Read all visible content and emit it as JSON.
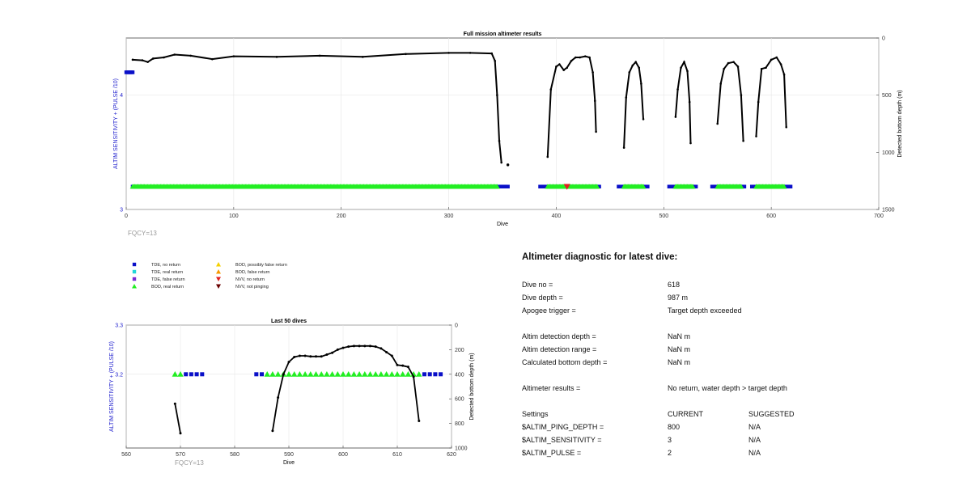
{
  "colors": {
    "tde_no_return": "#0a10c8",
    "tde_real_return": "#22d8d8",
    "tde_false_return": "#7a2bd6",
    "bod_real_return": "#22ee22",
    "bod_possibly_false": "#f5d000",
    "bod_false_return": "#f59a00",
    "nvv_no_return": "#e02020",
    "nvv_not_pinging": "#6a0000",
    "depth_line": "#000000",
    "left_axis": "#1a1acc"
  },
  "legend": {
    "items": [
      {
        "label": "TDE, no return",
        "marker": "square",
        "color": "#0a10c8"
      },
      {
        "label": "TDE, real return",
        "marker": "square",
        "color": "#22d8d8"
      },
      {
        "label": "TDE, false return",
        "marker": "square",
        "color": "#7a2bd6"
      },
      {
        "label": "BOD, real return",
        "marker": "triangle-up",
        "color": "#22ee22"
      },
      {
        "label": "BOD, possibly false return",
        "marker": "triangle-up",
        "color": "#f5d000"
      },
      {
        "label": "BOD, false return",
        "marker": "triangle-up",
        "color": "#f59a00"
      },
      {
        "label": "NVV, no return",
        "marker": "triangle-down",
        "color": "#e02020"
      },
      {
        "label": "NVV, not pinging",
        "marker": "triangle-down",
        "color": "#6a0000"
      }
    ]
  },
  "chart_data": [
    {
      "type": "line",
      "title": "Full mission altimeter results",
      "xlabel": "Dive",
      "ylabel_left": "ALTIM SENSITIVITY + (PULSE /10)",
      "ylabel_right": "Detected bottom depth (m)",
      "xlim": [
        0,
        700
      ],
      "ylim_left": [
        3,
        4.5
      ],
      "ylim_right": [
        0,
        1500
      ],
      "right_axis_reversed": true,
      "grid": true,
      "xticks": [
        "0",
        "100",
        "200",
        "300",
        "400",
        "500",
        "600",
        "700"
      ],
      "yticks_left": [
        "3",
        "4"
      ],
      "yticks_right": [
        "0",
        "500",
        "1000",
        "1500"
      ],
      "annotation": "FQCY=13",
      "setting_series": [
        {
          "name": "TDE, no return",
          "y": 3.2,
          "ranges": [
            [
              6,
              15
            ],
            [
              340,
              355
            ],
            [
              385,
              440
            ],
            [
              458,
              485
            ],
            [
              505,
              530
            ],
            [
              545,
              575
            ],
            [
              582,
              618
            ]
          ]
        },
        {
          "name": "BOD, real return",
          "y": 3.2,
          "ranges": [
            [
              6,
              345
            ],
            [
              392,
              438
            ],
            [
              463,
              481
            ],
            [
              511,
              527
            ],
            [
              550,
              572
            ],
            [
              586,
              612
            ]
          ]
        },
        {
          "name": "NVV, no return",
          "y": 3.2,
          "x": [
            410
          ]
        },
        {
          "name": "early setting",
          "y": 4.2,
          "ranges": [
            [
              0,
              6
            ]
          ]
        }
      ],
      "depth_series": {
        "segments": [
          [
            [
              6,
              190
            ],
            [
              15,
              195
            ],
            [
              20,
              210
            ],
            [
              25,
              180
            ],
            [
              35,
              170
            ],
            [
              45,
              145
            ],
            [
              60,
              155
            ],
            [
              80,
              185
            ],
            [
              100,
              160
            ],
            [
              140,
              165
            ],
            [
              180,
              155
            ],
            [
              220,
              165
            ],
            [
              260,
              140
            ],
            [
              300,
              130
            ],
            [
              320,
              130
            ],
            [
              340,
              135
            ],
            [
              343,
              200
            ],
            [
              345,
              500
            ],
            [
              347,
              900
            ],
            [
              349,
              1090
            ]
          ],
          [
            [
              392,
              1040
            ],
            [
              395,
              450
            ],
            [
              400,
              250
            ],
            [
              403,
              230
            ],
            [
              407,
              280
            ],
            [
              410,
              260
            ],
            [
              414,
              200
            ],
            [
              418,
              170
            ],
            [
              422,
              170
            ],
            [
              427,
              160
            ],
            [
              431,
              170
            ],
            [
              434,
              300
            ],
            [
              436,
              550
            ],
            [
              437,
              820
            ]
          ],
          [
            [
              463,
              960
            ],
            [
              465,
              520
            ],
            [
              468,
              300
            ],
            [
              471,
              240
            ],
            [
              474,
              210
            ],
            [
              477,
              260
            ],
            [
              479,
              400
            ],
            [
              481,
              710
            ]
          ],
          [
            [
              511,
              690
            ],
            [
              513,
              450
            ],
            [
              516,
              260
            ],
            [
              519,
              210
            ],
            [
              522,
              290
            ],
            [
              524,
              560
            ],
            [
              525,
              920
            ]
          ],
          [
            [
              550,
              750
            ],
            [
              553,
              400
            ],
            [
              556,
              270
            ],
            [
              560,
              220
            ],
            [
              565,
              210
            ],
            [
              569,
              250
            ],
            [
              572,
              500
            ],
            [
              574,
              900
            ]
          ],
          [
            [
              586,
              860
            ],
            [
              588,
              560
            ],
            [
              591,
              270
            ],
            [
              595,
              260
            ],
            [
              600,
              190
            ],
            [
              605,
              170
            ],
            [
              609,
              230
            ],
            [
              612,
              320
            ],
            [
              614,
              780
            ]
          ]
        ],
        "isolated": [
          [
            355,
            1110
          ]
        ]
      }
    },
    {
      "type": "line",
      "title": "Last 50 dives",
      "xlabel": "Dive",
      "ylabel_left": "ALTIM SENSITIVITY + (PULSE /10)",
      "ylabel_right": "Detected bottom depth (m)",
      "xlim": [
        560,
        620
      ],
      "ylim_left": [
        3.05,
        3.3
      ],
      "ylim_right": [
        0,
        1000
      ],
      "right_axis_reversed": true,
      "grid": true,
      "xticks": [
        "560",
        "570",
        "580",
        "590",
        "600",
        "610",
        "620"
      ],
      "yticks_left": [
        "3.2",
        "3.3"
      ],
      "yticks_right": [
        "0",
        "200",
        "400",
        "600",
        "800",
        "1000"
      ],
      "annotation": "FQCY=13",
      "setting_series": [
        {
          "name": "BOD, real return",
          "y": 3.2,
          "x": [
            569,
            570,
            586,
            587,
            588,
            589,
            590,
            591,
            592,
            593,
            594,
            595,
            596,
            597,
            598,
            599,
            600,
            601,
            602,
            603,
            604,
            605,
            606,
            607,
            608,
            609,
            610,
            611,
            612,
            613,
            614
          ]
        },
        {
          "name": "TDE, no return",
          "y": 3.2,
          "x": [
            571,
            572,
            573,
            574,
            584,
            585,
            615,
            616,
            617,
            618
          ]
        }
      ],
      "depth_series": {
        "segments": [
          [
            [
              569,
              640
            ],
            [
              570,
              880
            ]
          ],
          [
            [
              587,
              860
            ],
            [
              588,
              590
            ],
            [
              589,
              400
            ],
            [
              590,
              300
            ],
            [
              591,
              260
            ],
            [
              592,
              250
            ],
            [
              593,
              250
            ],
            [
              594,
              255
            ],
            [
              595,
              255
            ],
            [
              596,
              255
            ],
            [
              597,
              240
            ],
            [
              598,
              225
            ],
            [
              599,
              200
            ],
            [
              600,
              185
            ],
            [
              601,
              175
            ],
            [
              602,
              170
            ],
            [
              603,
              170
            ],
            [
              604,
              170
            ],
            [
              605,
              170
            ],
            [
              606,
              175
            ],
            [
              607,
              190
            ],
            [
              608,
              220
            ],
            [
              609,
              250
            ],
            [
              610,
              325
            ],
            [
              611,
              330
            ],
            [
              612,
              340
            ],
            [
              613,
              420
            ],
            [
              614,
              780
            ]
          ]
        ],
        "isolated": []
      }
    }
  ],
  "diagnostic": {
    "title": "Altimeter diagnostic for latest dive:",
    "dive_no_label": "Dive no =",
    "dive_no_value": "618",
    "dive_depth_label": "Dive depth =",
    "dive_depth_value": "987 m",
    "apogee_label": "Apogee trigger =",
    "apogee_value": "Target depth exceeded",
    "altim_det_depth_label": "Altim detection depth =",
    "altim_det_depth_value": "NaN m",
    "altim_det_range_label": "Altim detection range =",
    "altim_det_range_value": "NaN m",
    "calc_bottom_label": "Calculated bottom depth =",
    "calc_bottom_value": "NaN m",
    "results_label": "Altimeter results =",
    "results_value": "No return, water depth > target depth",
    "settings_label": "Settings",
    "current_label": "CURRENT",
    "suggested_label": "SUGGESTED",
    "ping_depth_label": "$ALTIM_PING_DEPTH =",
    "ping_depth_current": "800",
    "ping_depth_suggested": "N/A",
    "sensitivity_label": "$ALTIM_SENSITIVITY =",
    "sensitivity_current": "3",
    "sensitivity_suggested": "N/A",
    "pulse_label": "$ALTIM_PULSE =",
    "pulse_current": "2",
    "pulse_suggested": "N/A"
  }
}
